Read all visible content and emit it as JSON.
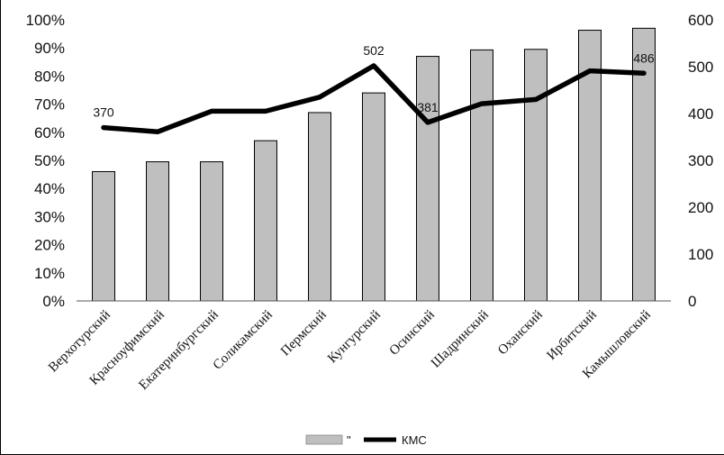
{
  "chart_data": {
    "type": "bar+line",
    "categories": [
      "Верхотурский",
      "Красноуфимский",
      "Екатеринбургский",
      "Соликамский",
      "Пермский",
      "Кунгурский",
      "Осинский",
      "Шадринский",
      "Оханский",
      "Ирбитский",
      "Камышловский"
    ],
    "series": [
      {
        "name": "\"",
        "type": "bar",
        "axis": "left",
        "color": "#bfbfbf",
        "values": [
          0.46,
          0.495,
          0.495,
          0.57,
          0.67,
          0.74,
          0.87,
          0.893,
          0.895,
          0.963,
          0.97
        ]
      },
      {
        "name": "КМС",
        "type": "line",
        "axis": "right",
        "color": "#000000",
        "values": [
          370,
          361,
          405,
          405,
          435,
          502,
          381,
          421,
          430,
          491,
          486
        ]
      }
    ],
    "data_labels": [
      {
        "series": 1,
        "index": 0,
        "text": "370"
      },
      {
        "series": 1,
        "index": 5,
        "text": "502"
      },
      {
        "series": 1,
        "index": 6,
        "text": "381"
      },
      {
        "series": 1,
        "index": 10,
        "text": "486"
      }
    ],
    "left_axis": {
      "min": 0,
      "max": 1,
      "step": 0.1,
      "tick_labels": [
        "0%",
        "10%",
        "20%",
        "30%",
        "40%",
        "50%",
        "60%",
        "70%",
        "80%",
        "90%",
        "100%"
      ]
    },
    "right_axis": {
      "min": 0,
      "max": 600,
      "step": 100,
      "tick_labels": [
        "0",
        "100",
        "200",
        "300",
        "400",
        "500",
        "600"
      ]
    },
    "grid": false,
    "legend_position": "bottom",
    "title": "",
    "xlabel": "",
    "ylabel": ""
  }
}
